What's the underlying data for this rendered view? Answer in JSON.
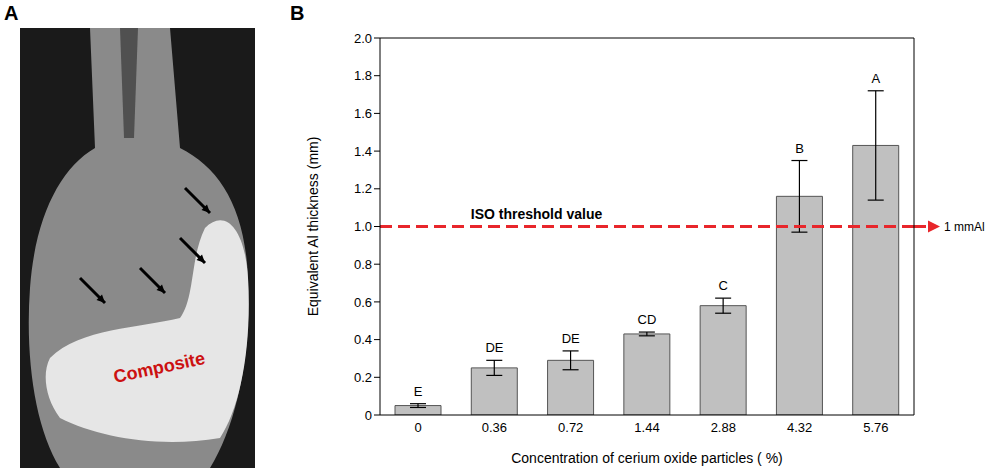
{
  "panel_labels": [
    "A",
    "B"
  ],
  "image": {
    "label": "Composite",
    "label_color": "#cc1111"
  },
  "chart_data": {
    "type": "bar",
    "categories": [
      "0",
      "0.36",
      "0.72",
      "1.44",
      "2.88",
      "4.32",
      "5.76"
    ],
    "values": [
      0.05,
      0.25,
      0.29,
      0.43,
      0.58,
      1.16,
      1.43
    ],
    "errors": [
      0.01,
      0.04,
      0.05,
      0.01,
      0.04,
      0.19,
      0.29
    ],
    "group_labels": [
      "E",
      "DE",
      "DE",
      "CD",
      "C",
      "B",
      "A"
    ],
    "color": "#c0c0c0",
    "x_label": "Concentration of cerium oxide particles ( %)",
    "y_label": "Equivalent Al thickness (mm)",
    "ylim": [
      0,
      2
    ],
    "yticks": [
      0,
      0.2,
      0.4,
      0.6,
      0.8,
      {
        "value": 1,
        "label": "1.0"
      },
      1.2,
      1.4,
      1.6,
      1.8,
      {
        "value": 2,
        "label": "2.0"
      }
    ],
    "grid": false,
    "threshold": {
      "value": 1,
      "label": "ISO threshold value",
      "end_label": "1 mmAl",
      "color": "#e8262b",
      "line_style": "dashed"
    }
  }
}
